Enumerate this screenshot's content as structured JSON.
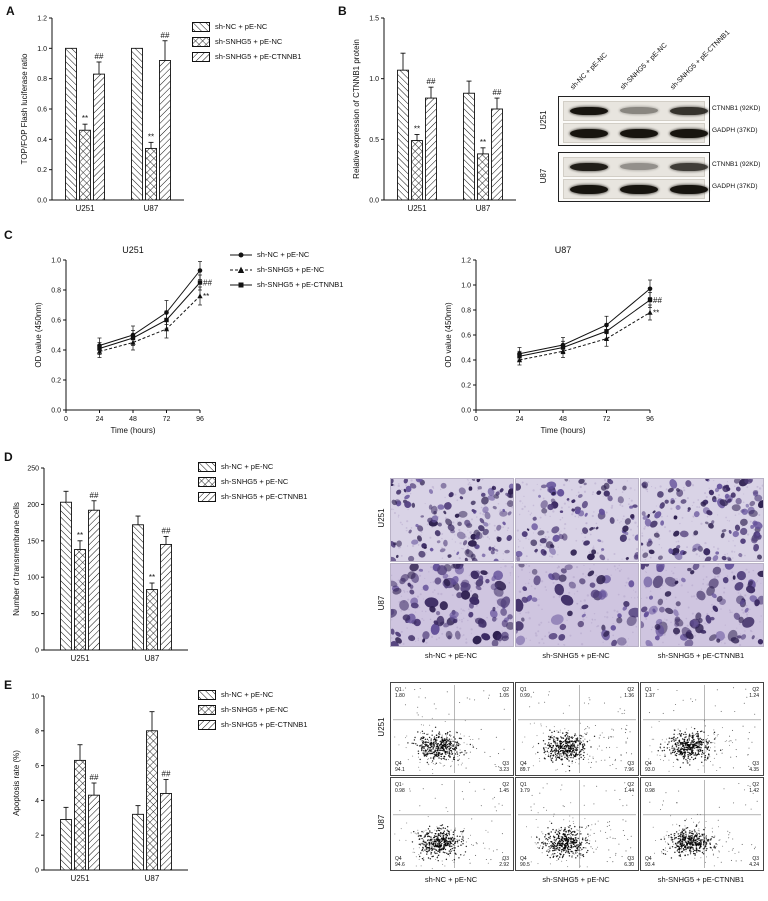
{
  "panels": {
    "A": "A",
    "B": "B",
    "C": "C",
    "D": "D",
    "E": "E"
  },
  "conditions": [
    "sh-NC + pE-NC",
    "sh-SNHG5 + pE-NC",
    "sh-SNHG5 + pE-CTNNB1"
  ],
  "cell_lines": [
    "U251",
    "U87"
  ],
  "colors": {
    "ink": "#111111",
    "cell_stain": "#4b2e83",
    "transwell_bg_u251": "#d9d3e6",
    "transwell_bg_u87": "#cfc5e0"
  },
  "chart_data": [
    {
      "id": "A",
      "type": "bar",
      "ylabel": "TOP/FOP Flash luciferase ratio",
      "ylim": [
        0,
        1.2
      ],
      "ytick_step": 0.2,
      "ydecimals": 1,
      "categories": [
        "U251",
        "U87"
      ],
      "series": [
        {
          "name": "sh-NC + pE-NC",
          "pattern": "diag-down",
          "values": [
            1.0,
            1.0
          ],
          "errors": [
            0,
            0
          ],
          "annotations": [
            "",
            ""
          ]
        },
        {
          "name": "sh-SNHG5 + pE-NC",
          "pattern": "cross",
          "values": [
            0.46,
            0.34
          ],
          "errors": [
            0.04,
            0.04
          ],
          "annotations": [
            "**",
            "**"
          ]
        },
        {
          "name": "sh-SNHG5 + pE-CTNNB1",
          "pattern": "diag-up",
          "values": [
            0.83,
            0.92
          ],
          "errors": [
            0.08,
            0.13
          ],
          "annotations": [
            "##",
            "##"
          ]
        }
      ]
    },
    {
      "id": "B",
      "type": "bar",
      "ylabel": "Relative expression of CTNNB1 protein",
      "ylim": [
        0,
        1.5
      ],
      "ytick_step": 0.5,
      "ydecimals": 1,
      "categories": [
        "U251",
        "U87"
      ],
      "series": [
        {
          "name": "sh-NC + pE-NC",
          "pattern": "diag-down",
          "values": [
            1.07,
            0.88
          ],
          "errors": [
            0.14,
            0.1
          ],
          "annotations": [
            "",
            ""
          ]
        },
        {
          "name": "sh-SNHG5 + pE-NC",
          "pattern": "cross",
          "values": [
            0.49,
            0.38
          ],
          "errors": [
            0.05,
            0.05
          ],
          "annotations": [
            "**",
            "**"
          ]
        },
        {
          "name": "sh-SNHG5 + pE-CTNNB1",
          "pattern": "diag-up",
          "values": [
            0.84,
            0.75
          ],
          "errors": [
            0.09,
            0.09
          ],
          "annotations": [
            "##",
            "##"
          ]
        }
      ]
    },
    {
      "id": "C-U251",
      "type": "line",
      "title": "U251",
      "xlabel": "Time (hours)",
      "ylabel": "OD value (450nm)",
      "x": [
        24,
        48,
        72,
        96
      ],
      "xticks": [
        0,
        24,
        48,
        72,
        96
      ],
      "ylim": [
        0,
        1.0
      ],
      "ytick_step": 0.2,
      "ydecimals": 1,
      "series": [
        {
          "name": "sh-NC + pE-NC",
          "marker": "circle",
          "dash": false,
          "values": [
            0.43,
            0.5,
            0.65,
            0.93
          ],
          "errors": [
            0.05,
            0.06,
            0.08,
            0.06
          ],
          "annotation": ""
        },
        {
          "name": "sh-SNHG5 + pE-NC",
          "marker": "triangle",
          "dash": true,
          "values": [
            0.39,
            0.45,
            0.54,
            0.76
          ],
          "errors": [
            0.04,
            0.05,
            0.06,
            0.06
          ],
          "annotation": "**"
        },
        {
          "name": "sh-SNHG5 + pE-CTNNB1",
          "marker": "square",
          "dash": false,
          "values": [
            0.41,
            0.48,
            0.6,
            0.85
          ],
          "errors": [
            0.04,
            0.05,
            0.06,
            0.05
          ],
          "annotation": "##"
        }
      ]
    },
    {
      "id": "C-U87",
      "type": "line",
      "title": "U87",
      "xlabel": "Time (hours)",
      "ylabel": "OD value (450nm)",
      "x": [
        24,
        48,
        72,
        96
      ],
      "xticks": [
        0,
        24,
        48,
        72,
        96
      ],
      "ylim": [
        0,
        1.2
      ],
      "ytick_step": 0.2,
      "ydecimals": 1,
      "series": [
        {
          "name": "sh-NC + pE-NC",
          "marker": "circle",
          "dash": false,
          "values": [
            0.45,
            0.52,
            0.68,
            0.97
          ],
          "errors": [
            0.05,
            0.06,
            0.07,
            0.07
          ],
          "annotation": ""
        },
        {
          "name": "sh-SNHG5 + pE-NC",
          "marker": "triangle",
          "dash": true,
          "values": [
            0.4,
            0.47,
            0.57,
            0.78
          ],
          "errors": [
            0.04,
            0.05,
            0.06,
            0.06
          ],
          "annotation": "**"
        },
        {
          "name": "sh-SNHG5 + pE-CTNNB1",
          "marker": "square",
          "dash": false,
          "values": [
            0.43,
            0.5,
            0.63,
            0.88
          ],
          "errors": [
            0.04,
            0.05,
            0.06,
            0.06
          ],
          "annotation": "##"
        }
      ]
    },
    {
      "id": "D",
      "type": "bar",
      "ylabel": "Number of transmembrane cells",
      "ylim": [
        0,
        250
      ],
      "ytick_step": 50,
      "ydecimals": 0,
      "categories": [
        "U251",
        "U87"
      ],
      "series": [
        {
          "name": "sh-NC + pE-NC",
          "pattern": "diag-down",
          "values": [
            203,
            172
          ],
          "errors": [
            15,
            12
          ],
          "annotations": [
            "",
            ""
          ]
        },
        {
          "name": "sh-SNHG5 + pE-NC",
          "pattern": "cross",
          "values": [
            138,
            83
          ],
          "errors": [
            12,
            9
          ],
          "annotations": [
            "**",
            "**"
          ]
        },
        {
          "name": "sh-SNHG5 + pE-CTNNB1",
          "pattern": "diag-up",
          "values": [
            192,
            145
          ],
          "errors": [
            13,
            11
          ],
          "annotations": [
            "##",
            "##"
          ]
        }
      ]
    },
    {
      "id": "E",
      "type": "bar",
      "ylabel": "Apoptosis rate (%)",
      "ylim": [
        0,
        10
      ],
      "ytick_step": 2,
      "ydecimals": 0,
      "categories": [
        "U251",
        "U87"
      ],
      "series": [
        {
          "name": "sh-NC + pE-NC",
          "pattern": "diag-down",
          "values": [
            2.9,
            3.2
          ],
          "errors": [
            0.7,
            0.5
          ],
          "annotations": [
            "",
            ""
          ]
        },
        {
          "name": "sh-SNHG5 + pE-NC",
          "pattern": "cross",
          "values": [
            6.3,
            8.0
          ],
          "errors": [
            0.9,
            1.1
          ],
          "annotations": [
            "",
            ""
          ]
        },
        {
          "name": "sh-SNHG5 + pE-CTNNB1",
          "pattern": "diag-up",
          "values": [
            4.3,
            4.4
          ],
          "errors": [
            0.7,
            0.8
          ],
          "annotations": [
            "##",
            "##"
          ]
        }
      ]
    }
  ],
  "western_blot": {
    "lane_labels": [
      "sh-NC + pE-NC",
      "sh-SNHG5 + pE-NC",
      "sh-SNHG5 + pE-CTNNB1"
    ],
    "groups": [
      {
        "cell_line": "U251",
        "rows": [
          {
            "label": "CTNNB1 (92KD)",
            "intensities": [
              1,
              0.45,
              0.85
            ]
          },
          {
            "label": "GADPH (37KD)",
            "intensities": [
              1,
              1,
              1
            ]
          }
        ]
      },
      {
        "cell_line": "U87",
        "rows": [
          {
            "label": "CTNNB1 (92KD)",
            "intensities": [
              0.95,
              0.4,
              0.8
            ]
          },
          {
            "label": "GADPH (37KD)",
            "intensities": [
              1,
              1,
              1
            ]
          }
        ]
      }
    ]
  },
  "transwell": {
    "rows": [
      "U251",
      "U87"
    ],
    "cols": [
      "sh-NC + pE-NC",
      "sh-SNHG5 + pE-NC",
      "sh-SNHG5 + pE-CTNNB1"
    ]
  },
  "flow": {
    "rows": [
      "U251",
      "U87"
    ],
    "cols": [
      "sh-NC + pE-NC",
      "sh-SNHG5 + pE-NC",
      "sh-SNHG5 + pE-CTNNB1"
    ],
    "plots": [
      [
        {
          "Q1": "1.80",
          "Q2": "1.05",
          "Q3": "3.23",
          "Q4": "94.1"
        },
        {
          "Q1": "0.99",
          "Q2": "1.36",
          "Q3": "7.96",
          "Q4": "89.7"
        },
        {
          "Q1": "1.37",
          "Q2": "1.24",
          "Q3": "4.35",
          "Q4": "93.0"
        }
      ],
      [
        {
          "Q1": "0.98",
          "Q2": "1.45",
          "Q3": "2.92",
          "Q4": "94.6"
        },
        {
          "Q1": "1.79",
          "Q2": "1.44",
          "Q3": "6.30",
          "Q4": "90.5"
        },
        {
          "Q1": "0.98",
          "Q2": "1.42",
          "Q3": "4.24",
          "Q4": "93.4"
        }
      ]
    ]
  }
}
